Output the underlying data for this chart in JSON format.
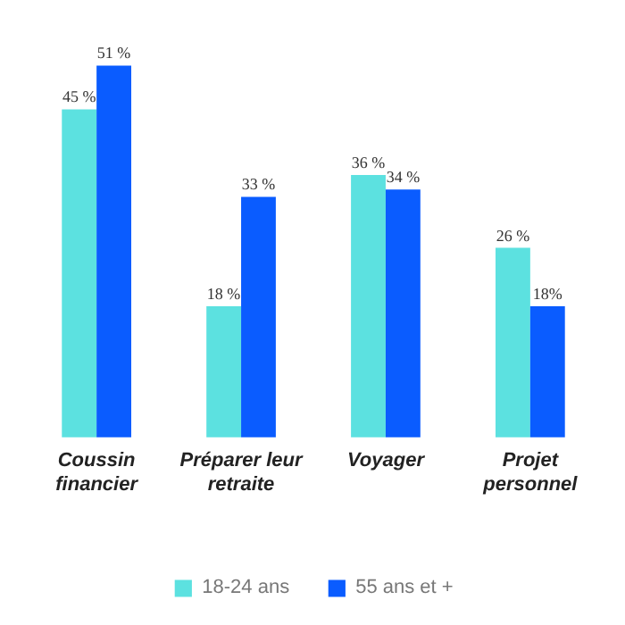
{
  "chart_data": {
    "type": "bar",
    "categories": [
      "Coussin financier",
      "Préparer leur retraite",
      "Voyager",
      "Projet personnel"
    ],
    "series": [
      {
        "name": "18-24 ans",
        "color": "#5ce1e0",
        "values": [
          45,
          18,
          36,
          26
        ],
        "value_labels": [
          "45 %",
          "18 %",
          "36 %",
          "26 %"
        ]
      },
      {
        "name": "55 ans et +",
        "color": "#0a5cff",
        "values": [
          51,
          33,
          34,
          18
        ],
        "value_labels": [
          "51 %",
          "33 %",
          "34 %",
          "18%"
        ]
      }
    ],
    "legend": "bottom"
  }
}
